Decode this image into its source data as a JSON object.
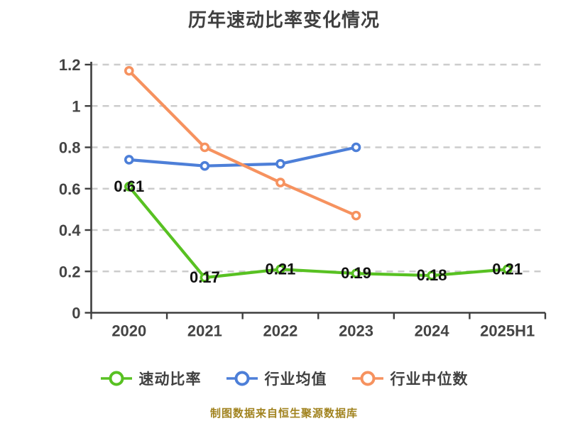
{
  "chart_data": {
    "type": "line",
    "title": "历年速动比率变化情况",
    "categories": [
      "2020",
      "2021",
      "2022",
      "2023",
      "2024",
      "2025H1"
    ],
    "series": [
      {
        "name": "速动比率",
        "color": "#58C122",
        "values": [
          0.61,
          0.17,
          0.21,
          0.19,
          0.18,
          0.21
        ],
        "labels": [
          "0.61",
          "0.17",
          "0.21",
          "0.19",
          "0.18",
          "0.21"
        ],
        "show_labels": true
      },
      {
        "name": "行业均值",
        "color": "#4D7FD8",
        "values": [
          0.74,
          0.71,
          0.72,
          0.8,
          null,
          null
        ],
        "labels": [],
        "show_labels": false
      },
      {
        "name": "行业中位数",
        "color": "#F6925F",
        "values": [
          1.17,
          0.8,
          0.63,
          0.47,
          null,
          null
        ],
        "labels": [],
        "show_labels": false
      }
    ],
    "ylim": [
      0,
      1.2
    ],
    "yticks": [
      "0",
      "0.2",
      "0.4",
      "0.6",
      "0.8",
      "1",
      "1.2"
    ],
    "grid": "dashed-horizontal",
    "legend_position": "bottom",
    "marker_style": "white-filled-circle",
    "colors": {
      "title": "#3F3F3F",
      "axis": "#3E3E3E",
      "grid": "#CCCCCC",
      "tick_label": "#444444",
      "data_label": "#111111",
      "legend_text": "#404040",
      "footer": "#A1831F",
      "background": "#FFFFFF"
    }
  },
  "footer": {
    "text": "制图数据来自恒生聚源数据库"
  }
}
